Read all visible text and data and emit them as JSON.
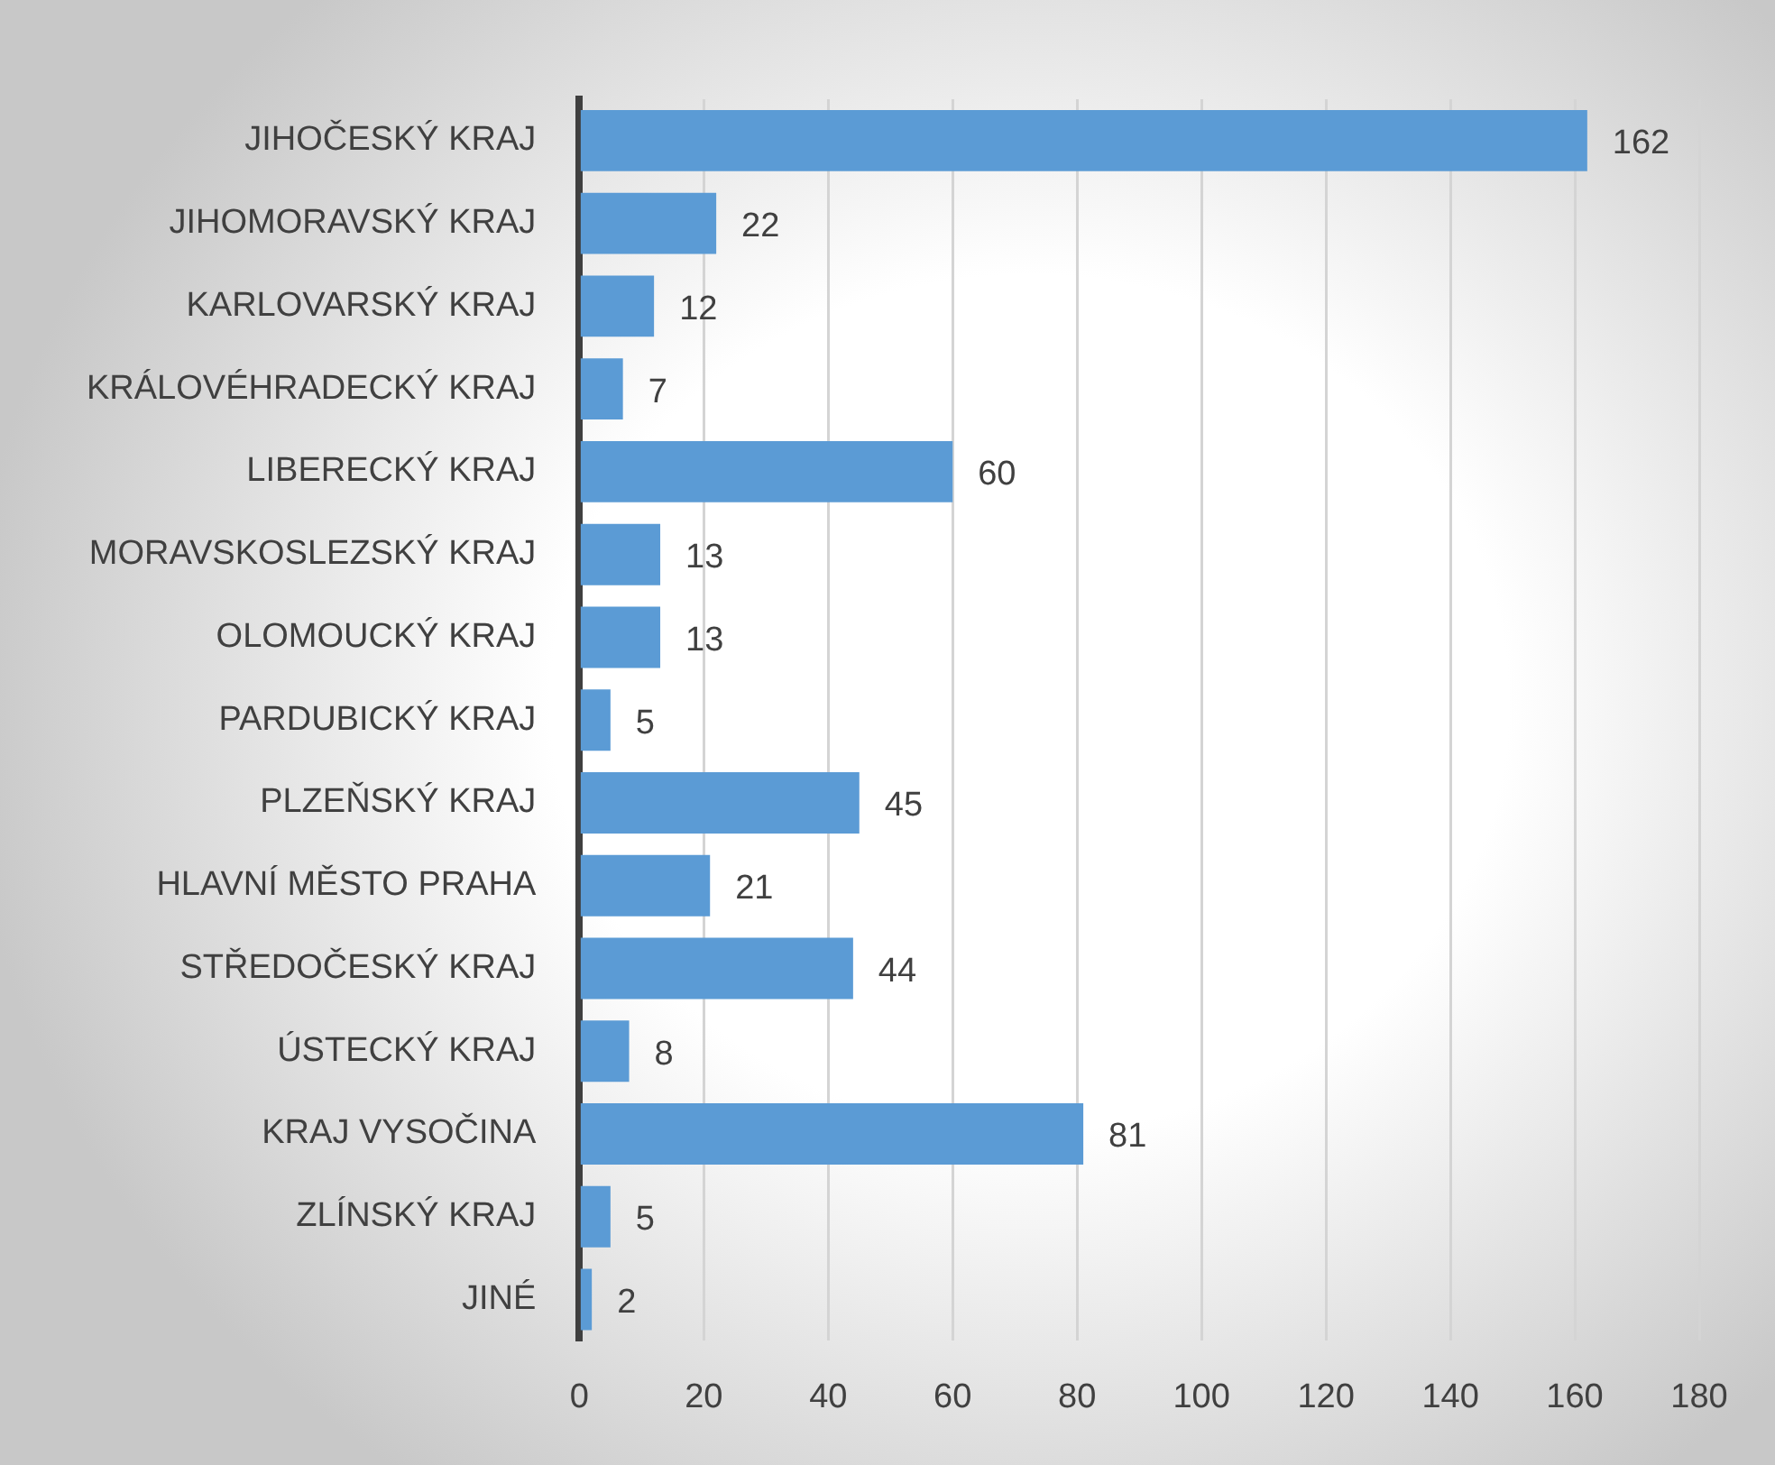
{
  "chart_data": {
    "type": "bar",
    "orientation": "horizontal",
    "categories": [
      "JIHOČESKÝ KRAJ",
      "JIHOMORAVSKÝ KRAJ",
      "KARLOVARSKÝ KRAJ",
      "KRÁLOVÉHRADECKÝ KRAJ",
      "LIBERECKÝ KRAJ",
      "MORAVSKOSLEZSKÝ KRAJ",
      "OLOMOUCKÝ KRAJ",
      "PARDUBICKÝ KRAJ",
      "PLZEŇSKÝ KRAJ",
      "HLAVNÍ MĚSTO PRAHA",
      "STŘEDOČESKÝ KRAJ",
      "ÚSTECKÝ KRAJ",
      "KRAJ VYSOČINA",
      "ZLÍNSKÝ KRAJ",
      "JINÉ"
    ],
    "values": [
      162,
      22,
      12,
      7,
      60,
      13,
      13,
      5,
      45,
      21,
      44,
      8,
      81,
      5,
      2
    ],
    "color": "#5b9bd5",
    "xlim": [
      0,
      180
    ],
    "xticks": [
      0,
      20,
      40,
      60,
      80,
      100,
      120,
      140,
      160,
      180
    ],
    "grid": "x",
    "data_labels": true
  }
}
